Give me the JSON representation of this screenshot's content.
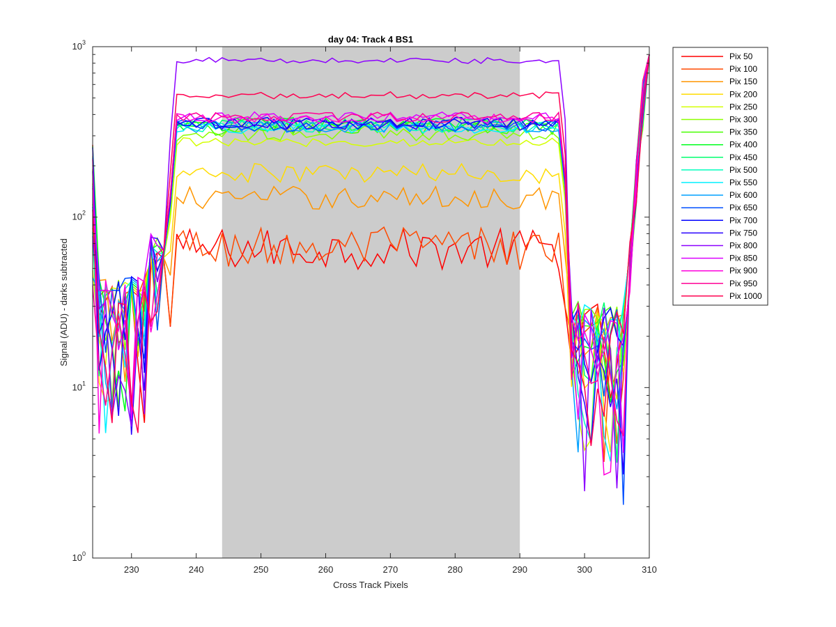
{
  "chart_data": {
    "type": "line",
    "title": "day 04: Track 4  BS1",
    "xlabel": "Cross Track Pixels",
    "ylabel": "Signal (ADU) - darks subtracted",
    "xlim": [
      224,
      310
    ],
    "ylim": [
      1,
      1000
    ],
    "yscale": "log",
    "xticks": [
      230,
      240,
      250,
      260,
      270,
      280,
      290,
      300,
      310
    ],
    "yticks": [
      {
        "value": 1,
        "base": "10",
        "exp": "0"
      },
      {
        "value": 10,
        "base": "10",
        "exp": "1"
      },
      {
        "value": 100,
        "base": "10",
        "exp": "2"
      },
      {
        "value": 1000,
        "base": "10",
        "exp": "3"
      }
    ],
    "grid": false,
    "legend_position": "outside-right",
    "shaded_region": {
      "x": [
        244,
        290
      ],
      "color": "#cccccc"
    },
    "series": [
      {
        "name": "Pix 50",
        "color": "#ff0000",
        "plateau": 65,
        "jitter": 0.28
      },
      {
        "name": "Pix 100",
        "color": "#ff4a00",
        "plateau": 66,
        "jitter": 0.3
      },
      {
        "name": "Pix 150",
        "color": "#ff9600",
        "plateau": 130,
        "jitter": 0.16
      },
      {
        "name": "Pix 200",
        "color": "#ffdc00",
        "plateau": 180,
        "jitter": 0.14
      },
      {
        "name": "Pix 250",
        "color": "#d4ff00",
        "plateau": 275,
        "jitter": 0.06
      },
      {
        "name": "Pix 300",
        "color": "#8cff00",
        "plateau": 310,
        "jitter": 0.1
      },
      {
        "name": "Pix 350",
        "color": "#46ff00",
        "plateau": 330,
        "jitter": 0.1
      },
      {
        "name": "Pix 400",
        "color": "#00ff1e",
        "plateau": 350,
        "jitter": 0.09
      },
      {
        "name": "Pix 450",
        "color": "#00ff6e",
        "plateau": 345,
        "jitter": 0.09
      },
      {
        "name": "Pix 500",
        "color": "#00ffbe",
        "plateau": 340,
        "jitter": 0.08
      },
      {
        "name": "Pix 550",
        "color": "#00f0ff",
        "plateau": 335,
        "jitter": 0.08
      },
      {
        "name": "Pix 600",
        "color": "#00a0ff",
        "plateau": 340,
        "jitter": 0.08
      },
      {
        "name": "Pix 650",
        "color": "#0050ff",
        "plateau": 345,
        "jitter": 0.08
      },
      {
        "name": "Pix 700",
        "color": "#0000ff",
        "plateau": 355,
        "jitter": 0.08
      },
      {
        "name": "Pix 750",
        "color": "#2800ff",
        "plateau": 350,
        "jitter": 0.08
      },
      {
        "name": "Pix 800",
        "color": "#8c00ff",
        "plateau": 830,
        "jitter": 0.04
      },
      {
        "name": "Pix 850",
        "color": "#dc00ff",
        "plateau": 390,
        "jitter": 0.07
      },
      {
        "name": "Pix 900",
        "color": "#ff00dc",
        "plateau": 380,
        "jitter": 0.07
      },
      {
        "name": "Pix 950",
        "color": "#ff0096",
        "plateau": 385,
        "jitter": 0.07
      },
      {
        "name": "Pix 1000",
        "color": "#ff0050",
        "plateau": 520,
        "jitter": 0.05
      }
    ]
  }
}
